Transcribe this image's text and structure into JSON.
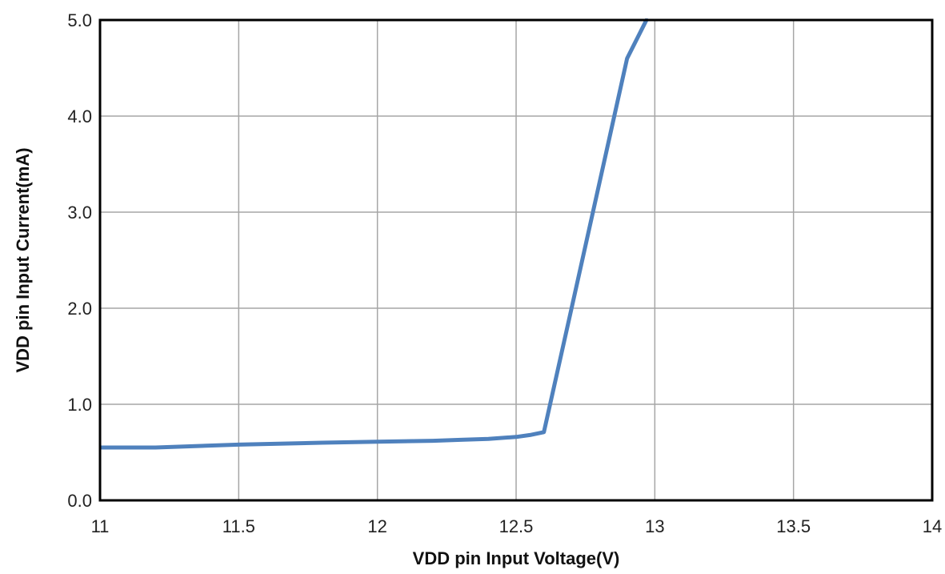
{
  "chart_data": {
    "type": "line",
    "title": "",
    "xlabel": "VDD pin Input Voltage(V)",
    "ylabel": "VDD pin Input Current(mA)",
    "xlim": [
      11,
      14
    ],
    "ylim": [
      0,
      5
    ],
    "x_ticks": [
      "11",
      "11.5",
      "12",
      "12.5",
      "13",
      "13.5",
      "14"
    ],
    "y_ticks": [
      "0.0",
      "1.0",
      "2.0",
      "3.0",
      "4.0",
      "5.0"
    ],
    "grid": true,
    "legend": "none",
    "series": [
      {
        "color": "#4f81bd",
        "x": [
          11.0,
          11.2,
          11.5,
          11.8,
          12.0,
          12.2,
          12.3,
          12.4,
          12.5,
          12.55,
          12.6,
          12.7,
          12.8,
          12.9,
          12.97
        ],
        "y": [
          0.55,
          0.55,
          0.58,
          0.6,
          0.61,
          0.62,
          0.63,
          0.64,
          0.66,
          0.68,
          0.71,
          2.0,
          3.3,
          4.6,
          5.0
        ]
      }
    ]
  }
}
